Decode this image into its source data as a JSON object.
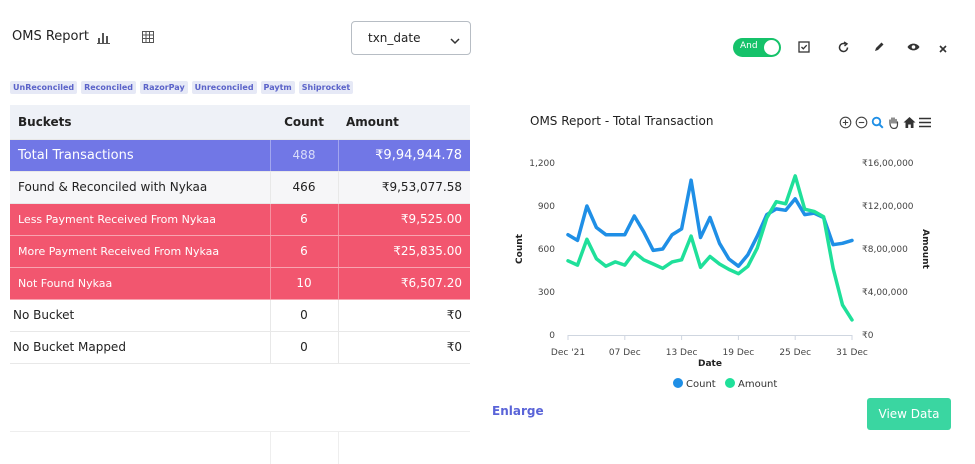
{
  "header": {
    "title": "OMS Report",
    "chart_view_icon": "bar-chart-icon",
    "table_view_icon": "grid-table-icon",
    "date_select": {
      "value": "txn_date"
    },
    "toggle": {
      "label": "And",
      "on": true,
      "color": "#15c26a"
    },
    "tools": [
      "checkbox-icon",
      "refresh-icon",
      "edit-pencil-icon",
      "eye-icon",
      "close-icon"
    ]
  },
  "tags": [
    "UnReconciled",
    "Reconciled",
    "RazorPay",
    "Unreconciled",
    "Paytm",
    "Shiprocket"
  ],
  "table": {
    "headers": [
      "Buckets",
      "Count",
      "Amount"
    ],
    "rows": [
      {
        "name": "Total  Transactions",
        "count": "488",
        "amount": "₹9,94,944.78",
        "style": "total"
      },
      {
        "name": "Found & Reconciled with Nykaa",
        "count": "466",
        "amount": "₹9,53,077.58",
        "style": "found"
      },
      {
        "name": "Less Payment Received From Nykaa",
        "count": "6",
        "amount": "₹9,525.00",
        "style": "red"
      },
      {
        "name": "More Payment Received From Nykaa",
        "count": "6",
        "amount": "₹25,835.00",
        "style": "red"
      },
      {
        "name": "Not Found Nykaa",
        "count": "10",
        "amount": "₹6,507.20",
        "style": "red"
      },
      {
        "name": "No Bucket",
        "count": "0",
        "amount": "₹0",
        "style": "plain"
      },
      {
        "name": "No Bucket Mapped",
        "count": "0",
        "amount": "₹0",
        "style": "plain"
      }
    ],
    "colors": {
      "total": "#7177e6",
      "red": "#f2566f"
    }
  },
  "chart": {
    "tools": [
      "zoom-in-icon",
      "zoom-out-icon",
      "magnify-icon",
      "pan-hand-icon",
      "home-icon",
      "menu-icon"
    ]
  },
  "chart_data": {
    "type": "line",
    "title": "OMS Report - Total Transaction",
    "xlabel": "Date",
    "ylabel": "Count",
    "y2label": "Amount",
    "x_ticks": [
      "Dec '21",
      "07 Dec",
      "13 Dec",
      "19 Dec",
      "25 Dec",
      "31 Dec"
    ],
    "x_tick_index": [
      0,
      6,
      12,
      18,
      24,
      30
    ],
    "y_ticks": [
      "0",
      "300",
      "600",
      "900",
      "1,200"
    ],
    "y_tick_values": [
      0,
      300,
      600,
      900,
      1200
    ],
    "y2_ticks": [
      "₹0",
      "₹4,00,000",
      "₹8,00,000",
      "₹12,00,000",
      "₹16,00,000"
    ],
    "ylim": [
      0,
      1200
    ],
    "y2lim": [
      0,
      1600000
    ],
    "legend": [
      "Count",
      "Amount"
    ],
    "legend_position": "bottom",
    "series": [
      {
        "name": "Count",
        "axis": "left",
        "color": "#1f8fe6",
        "values": [
          700,
          660,
          900,
          750,
          700,
          700,
          700,
          830,
          720,
          590,
          600,
          700,
          740,
          1080,
          680,
          820,
          640,
          530,
          480,
          560,
          690,
          840,
          880,
          870,
          950,
          840,
          850,
          820,
          630,
          640,
          660
        ]
      },
      {
        "name": "Amount",
        "axis": "right",
        "color": "#1fe09a",
        "values": [
          690000,
          650000,
          890000,
          710000,
          640000,
          680000,
          650000,
          770000,
          700000,
          660000,
          620000,
          680000,
          700000,
          920000,
          630000,
          730000,
          660000,
          610000,
          570000,
          640000,
          810000,
          1090000,
          1240000,
          1220000,
          1480000,
          1170000,
          1150000,
          1100000,
          620000,
          280000,
          140000
        ]
      }
    ]
  },
  "footer": {
    "enlarge_label": "Enlarge",
    "view_data_label": "View Data"
  }
}
